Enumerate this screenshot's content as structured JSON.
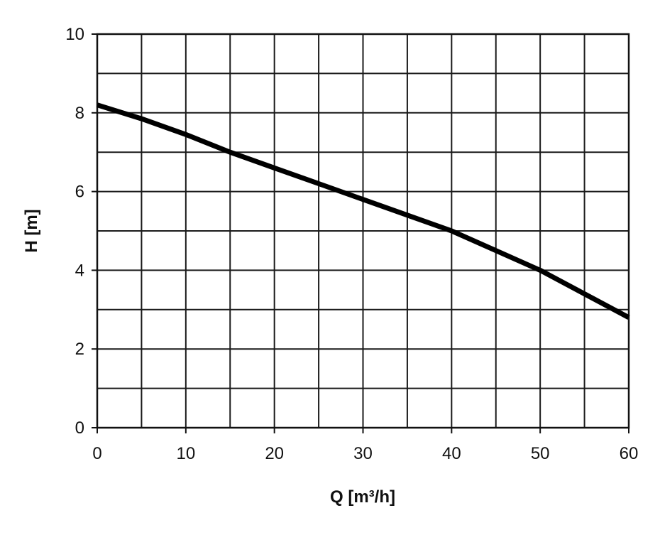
{
  "chart_data": {
    "type": "line",
    "title": "",
    "xlabel": "Q [m³/h]",
    "ylabel": "H [m]",
    "xlim": [
      0,
      60
    ],
    "ylim": [
      0,
      10
    ],
    "x_ticks": [
      0,
      10,
      20,
      30,
      40,
      50,
      60
    ],
    "y_ticks": [
      0,
      2,
      4,
      6,
      8,
      10
    ],
    "x_minor_step": 5,
    "y_minor_step": 1,
    "grid": true,
    "legend": "none",
    "line_color": "#000000",
    "series": [
      {
        "x": [
          0,
          5,
          10,
          15,
          20,
          25,
          30,
          35,
          40,
          45,
          50,
          55,
          60
        ],
        "y": [
          8.2,
          7.85,
          7.45,
          7.0,
          6.6,
          6.2,
          5.8,
          5.4,
          5.0,
          4.5,
          4.0,
          3.4,
          2.8
        ]
      }
    ]
  }
}
